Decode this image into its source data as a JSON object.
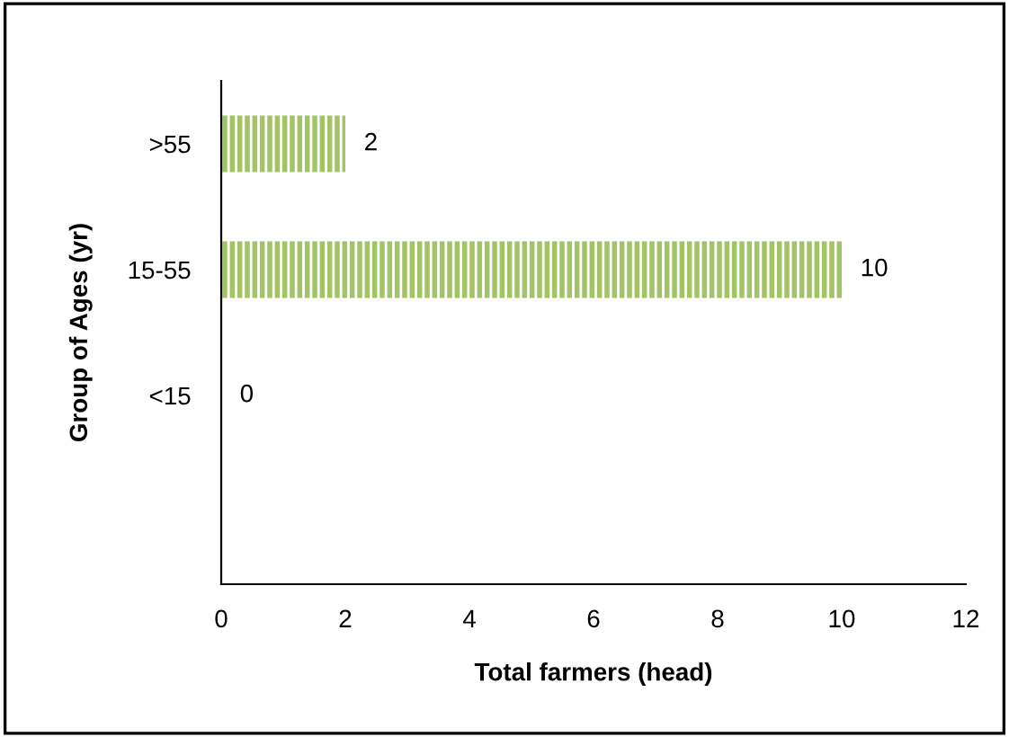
{
  "chart_data": {
    "type": "bar",
    "orientation": "horizontal",
    "categories": [
      ">55",
      "15-55",
      "<15",
      null
    ],
    "values": [
      2,
      10,
      0,
      null
    ],
    "color": "#a3c466",
    "data_labels": true,
    "xlabel": "Total farmers (head)",
    "ylabel": "Group of Ages (yr)",
    "xlim": [
      0,
      12
    ],
    "xticks": [
      0,
      2,
      4,
      6,
      8,
      10,
      12
    ],
    "grid": false,
    "legend": false
  }
}
